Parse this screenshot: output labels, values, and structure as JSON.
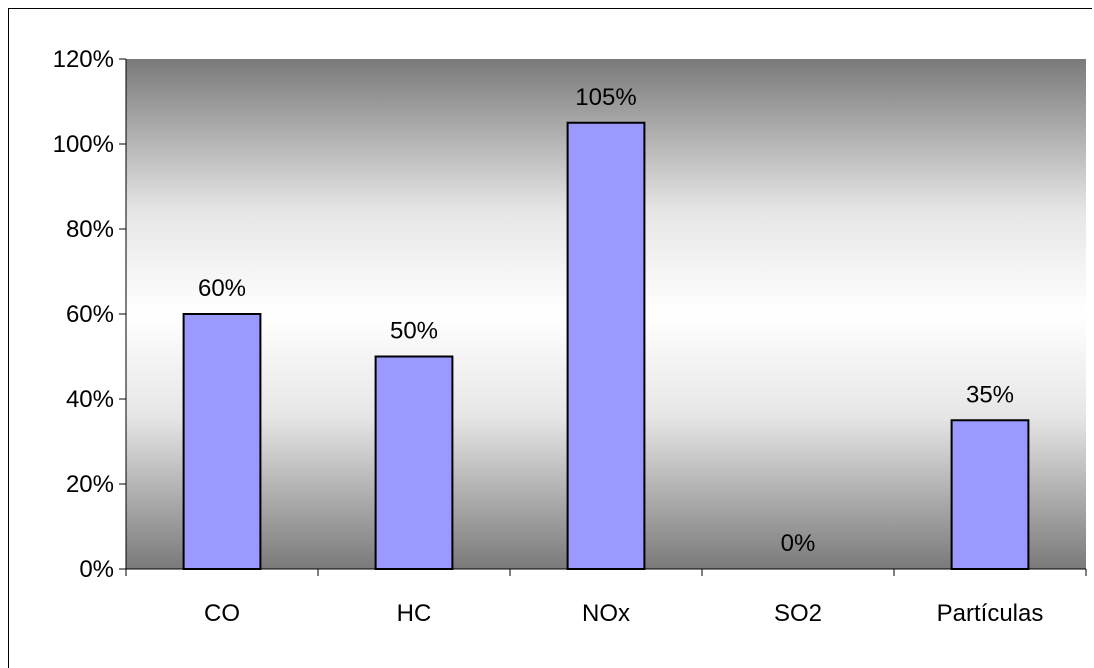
{
  "chart_data": {
    "type": "bar",
    "title": "",
    "xlabel": "",
    "ylabel": "",
    "categories": [
      "CO",
      "HC",
      "NOx",
      "SO2",
      "Partículas"
    ],
    "values": [
      60,
      50,
      105,
      0,
      35
    ],
    "data_labels": [
      "60%",
      "50%",
      "105%",
      "0%",
      "35%"
    ],
    "ylim": [
      0,
      120
    ],
    "y_ticks": [
      0,
      20,
      40,
      60,
      80,
      100,
      120
    ],
    "y_tick_labels": [
      "0%",
      "20%",
      "40%",
      "60%",
      "80%",
      "100%",
      "120%"
    ],
    "grid": false,
    "legend": "none",
    "colors": {
      "bar_fill": "#9999ff",
      "bar_stroke": "#000000",
      "plot_bg_dark": "#7a7a7a",
      "plot_bg_light": "#ffffff"
    }
  }
}
